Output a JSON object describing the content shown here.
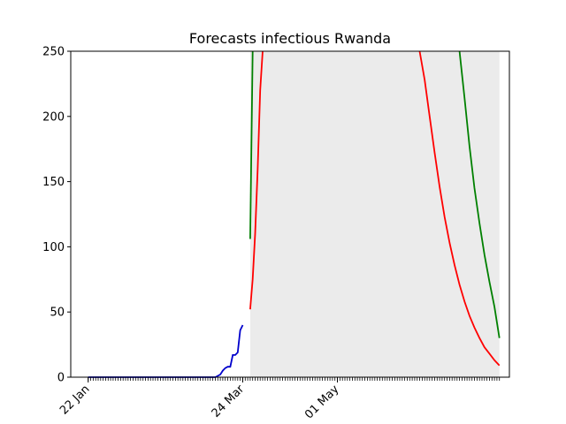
{
  "chart_data": {
    "type": "line",
    "title": "Forecasts infectious Rwanda",
    "xlabel": "",
    "ylabel": "",
    "ylim": [
      0,
      250
    ],
    "x_range": [
      "2020-01-15",
      "2020-07-09"
    ],
    "x_tick_labels": [
      {
        "date": "2020-01-22",
        "label": "22 Jan"
      },
      {
        "date": "2020-03-24",
        "label": "24 Mar"
      },
      {
        "date": "2020-05-01",
        "label": "01 May"
      }
    ],
    "y_ticks": [
      0,
      50,
      100,
      150,
      200,
      250
    ],
    "grid": false,
    "legend": "none",
    "minor_ticks": "daily",
    "band": {
      "start": "2020-03-27",
      "end": "2020-07-05",
      "color": "#ebebeb"
    },
    "series": [
      {
        "color": "#0000cc",
        "points": [
          [
            "2020-01-22",
            0
          ],
          [
            "2020-02-01",
            0
          ],
          [
            "2020-02-11",
            0
          ],
          [
            "2020-02-21",
            0
          ],
          [
            "2020-03-01",
            0
          ],
          [
            "2020-03-07",
            0
          ],
          [
            "2020-03-13",
            0
          ],
          [
            "2020-03-14",
            1
          ],
          [
            "2020-03-15",
            2
          ],
          [
            "2020-03-16",
            5
          ],
          [
            "2020-03-17",
            7
          ],
          [
            "2020-03-18",
            8
          ],
          [
            "2020-03-19",
            8
          ],
          [
            "2020-03-20",
            17
          ],
          [
            "2020-03-21",
            17
          ],
          [
            "2020-03-22",
            19
          ],
          [
            "2020-03-23",
            36
          ],
          [
            "2020-03-24",
            40
          ]
        ]
      },
      {
        "color": "#ff0000",
        "points": [
          [
            "2020-03-27",
            52
          ],
          [
            "2020-03-28",
            75
          ],
          [
            "2020-03-29",
            110
          ],
          [
            "2020-03-30",
            160
          ],
          [
            "2020-03-31",
            220
          ],
          [
            "2020-04-01",
            250
          ],
          [
            "2020-06-03",
            250
          ],
          [
            "2020-06-05",
            228
          ],
          [
            "2020-06-07",
            200
          ],
          [
            "2020-06-09",
            172
          ],
          [
            "2020-06-11",
            146
          ],
          [
            "2020-06-13",
            123
          ],
          [
            "2020-06-15",
            103
          ],
          [
            "2020-06-17",
            86
          ],
          [
            "2020-06-19",
            71
          ],
          [
            "2020-06-21",
            58
          ],
          [
            "2020-06-23",
            47
          ],
          [
            "2020-06-25",
            38
          ],
          [
            "2020-06-27",
            30
          ],
          [
            "2020-06-29",
            23
          ],
          [
            "2020-07-01",
            18
          ],
          [
            "2020-07-03",
            13
          ],
          [
            "2020-07-05",
            9
          ]
        ]
      },
      {
        "color": "#008000",
        "points": [
          [
            "2020-03-27",
            106
          ],
          [
            "2020-03-28",
            250
          ],
          [
            "2020-06-19",
            250
          ],
          [
            "2020-06-21",
            214
          ],
          [
            "2020-06-23",
            177
          ],
          [
            "2020-06-25",
            145
          ],
          [
            "2020-06-27",
            118
          ],
          [
            "2020-06-29",
            94
          ],
          [
            "2020-07-01",
            73
          ],
          [
            "2020-07-03",
            54
          ],
          [
            "2020-07-05",
            30
          ]
        ]
      }
    ]
  }
}
